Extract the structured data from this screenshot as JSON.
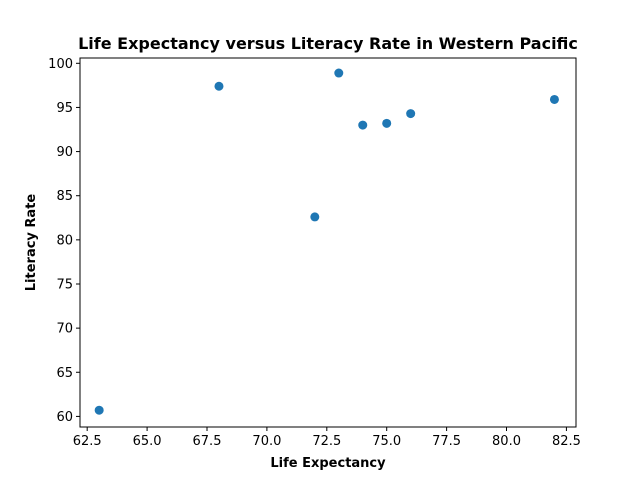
{
  "chart_data": {
    "type": "scatter",
    "title": "Life Expectancy versus Literacy Rate in Western Pacific",
    "xlabel": "Life Expectancy",
    "ylabel": "Literacy Rate",
    "xlim": [
      62.2,
      82.9
    ],
    "ylim": [
      58.8,
      100.6
    ],
    "xticks": [
      "62.5",
      "65.0",
      "67.5",
      "70.0",
      "72.5",
      "75.0",
      "77.5",
      "80.0",
      "82.5"
    ],
    "yticks": [
      "60",
      "65",
      "70",
      "75",
      "80",
      "85",
      "90",
      "95",
      "100"
    ],
    "grid": false,
    "marker_color": "#1f77b4",
    "points": [
      {
        "x": 63,
        "y": 60.7
      },
      {
        "x": 68,
        "y": 97.4
      },
      {
        "x": 72,
        "y": 82.6
      },
      {
        "x": 73,
        "y": 98.9
      },
      {
        "x": 74,
        "y": 93.0
      },
      {
        "x": 75,
        "y": 93.2
      },
      {
        "x": 76,
        "y": 94.3
      },
      {
        "x": 82,
        "y": 95.9
      }
    ]
  }
}
